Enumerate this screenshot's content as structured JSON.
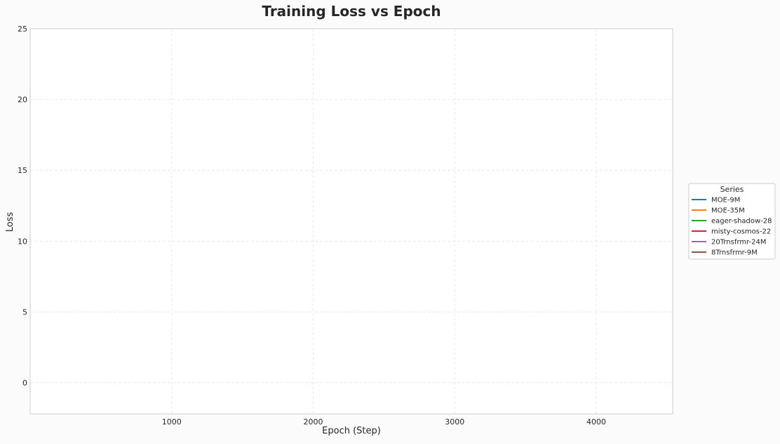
{
  "chart_data": {
    "type": "line",
    "title": "Training Loss vs Epoch",
    "xlabel": "Epoch (Step)",
    "ylabel": "Loss",
    "xlim": [
      0,
      4540
    ],
    "ylim": [
      -2.2,
      25
    ],
    "x_ticks": [
      1000,
      2000,
      3000,
      4000
    ],
    "y_ticks": [
      0,
      5,
      10,
      15,
      20,
      25
    ],
    "grid": true,
    "legend": {
      "title": "Series",
      "placement": "right-center"
    },
    "series": [
      {
        "name": "MOE-9M",
        "color": "#1f77b4",
        "x": [],
        "y": []
      },
      {
        "name": "MOE-35M",
        "color": "#ff7f0e",
        "x": [],
        "y": []
      },
      {
        "name": "eager-shadow-28",
        "color": "#2ca02c",
        "x": [],
        "y": []
      },
      {
        "name": "misty-cosmos-22",
        "color": "#d62728",
        "x": [],
        "y": []
      },
      {
        "name": "20Trnsfrmr-24M",
        "color": "#9467bd",
        "x": [],
        "y": []
      },
      {
        "name": "8Trnsfrmr-9M",
        "color": "#8c564b",
        "x": [],
        "y": []
      }
    ]
  }
}
